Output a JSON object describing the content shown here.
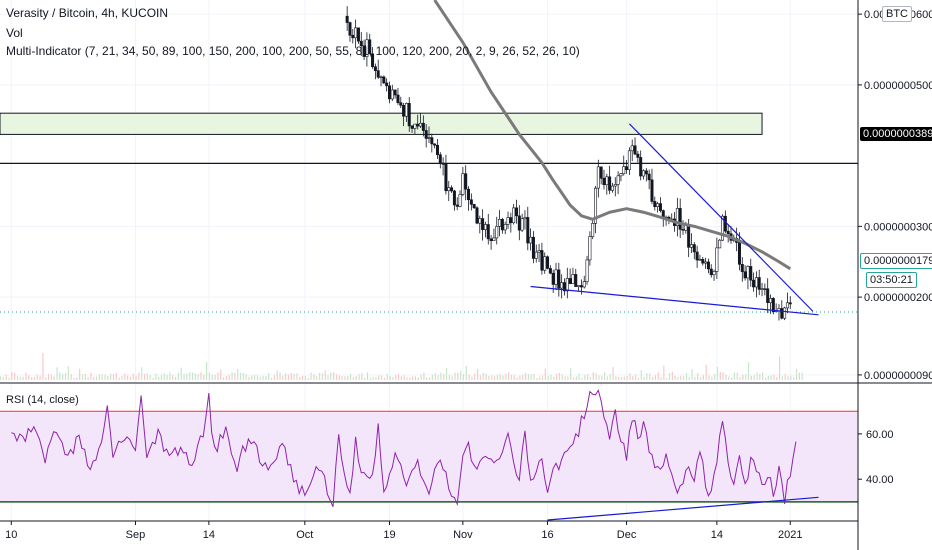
{
  "header": {
    "title": "Verasity / Bitcoin, 4h, KUCOIN",
    "volume_label": "Vol",
    "indicator_label": "Multi-Indicator (7, 21, 34, 50, 89, 100, 150, 200, 100, 200, 50, 55, 81, 100, 120, 200, 20, 2, 9, 26, 52, 26, 10)"
  },
  "currency_badge": "BTC",
  "price_tags": {
    "resistance": "0.0000000389",
    "last": "0.0000000179",
    "countdown": "03:50:21"
  },
  "colors": {
    "up": "#131722",
    "down": "#131722",
    "ma": "#7a7a7a",
    "trendline": "#1a1ad6",
    "zone_fill": "#e8f5e0",
    "rsi_line": "#8e24aa",
    "rsi_band": "#f3e5fa",
    "rsi_upper": "#e53935",
    "rsi_lower": "#1b5e20"
  },
  "chart_data": [
    {
      "type": "candlestick",
      "title": "Verasity / Bitcoin, 4h, KUCOIN",
      "y_ticks": [
        "0.0000000600",
        "0.0000000500",
        "0.0000000300",
        "0.0000000200",
        "0.0000000090"
      ],
      "y_tick_values": [
        60,
        50,
        30,
        20,
        9
      ],
      "y_unit_note": "values ×1e-9 BTC",
      "x_ticks": [
        "10",
        "Sep",
        "14",
        "Oct",
        "19",
        "Nov",
        "16",
        "Dec",
        "14",
        "2021"
      ],
      "x_tick_values": [
        0,
        22,
        35,
        52,
        67,
        80,
        95,
        109,
        125,
        138
      ],
      "x_range": [
        -2,
        150
      ],
      "y_range": [
        8,
        62
      ],
      "price_path": [
        [
          57,
          62
        ],
        [
          58,
          62
        ],
        [
          60,
          57
        ],
        [
          62,
          56
        ],
        [
          64,
          54
        ],
        [
          66,
          51
        ],
        [
          68,
          48
        ],
        [
          70,
          46
        ],
        [
          72,
          43.5
        ],
        [
          74,
          42
        ],
        [
          76,
          39
        ],
        [
          78,
          34
        ],
        [
          79,
          34
        ],
        [
          80,
          38
        ],
        [
          81,
          33
        ],
        [
          83,
          31
        ],
        [
          85,
          29
        ],
        [
          87,
          30
        ],
        [
          89,
          32
        ],
        [
          91,
          30
        ],
        [
          93,
          26
        ],
        [
          95,
          24
        ],
        [
          97,
          22
        ],
        [
          98,
          21.5
        ],
        [
          100,
          22
        ],
        [
          102,
          24
        ],
        [
          104,
          38
        ],
        [
          105,
          37
        ],
        [
          106,
          36
        ],
        [
          108,
          38
        ],
        [
          110,
          41
        ],
        [
          111,
          40
        ],
        [
          112,
          37
        ],
        [
          114,
          33
        ],
        [
          116,
          32
        ],
        [
          118,
          31
        ],
        [
          120,
          28
        ],
        [
          122,
          25
        ],
        [
          124,
          22
        ],
        [
          126,
          31
        ],
        [
          127,
          30
        ],
        [
          128,
          28
        ],
        [
          130,
          23
        ],
        [
          132,
          22
        ],
        [
          134,
          20
        ],
        [
          136,
          18
        ],
        [
          137,
          17
        ],
        [
          138,
          19
        ]
      ],
      "moving_average": [
        [
          75,
          62
        ],
        [
          80,
          56
        ],
        [
          85,
          49
        ],
        [
          90,
          43
        ],
        [
          94,
          39
        ],
        [
          96,
          36.5
        ],
        [
          99,
          33
        ],
        [
          101,
          31.5
        ],
        [
          103,
          31
        ],
        [
          106,
          32
        ],
        [
          109,
          32.5
        ],
        [
          112,
          32
        ],
        [
          115,
          31.3
        ],
        [
          118,
          30.5
        ],
        [
          121,
          30
        ],
        [
          124,
          29.3
        ],
        [
          127,
          28.6
        ],
        [
          130,
          27.6
        ],
        [
          133,
          26.4
        ],
        [
          136,
          25
        ],
        [
          138,
          24
        ]
      ],
      "resistance_zone": {
        "from": 43,
        "to": 46,
        "x_end": 133
      },
      "resistance_level": 38.9,
      "upper_trendline": [
        [
          109.5,
          44.5
        ],
        [
          142,
          18
        ]
      ],
      "lower_trendline": [
        [
          92,
          21.5
        ],
        [
          143,
          17.5
        ]
      ],
      "last_price": 17.9,
      "volume": {
        "note": "small volume bars along the bottom of the price pane"
      }
    },
    {
      "type": "line",
      "title": "RSI (14, close)",
      "y_ticks": [
        "60.00",
        "40.00"
      ],
      "y_tick_values": [
        60,
        40
      ],
      "y_range": [
        22,
        82
      ],
      "upper_band": 70,
      "lower_band": 30,
      "series": [
        {
          "name": "RSI (14, close)",
          "points": [
            [
              0,
              60
            ],
            [
              2,
              56
            ],
            [
              4,
              65
            ],
            [
              6,
              48
            ],
            [
              8,
              62
            ],
            [
              10,
              50
            ],
            [
              12,
              58
            ],
            [
              14,
              45
            ],
            [
              16,
              55
            ],
            [
              17,
              72
            ],
            [
              18,
              50
            ],
            [
              20,
              60
            ],
            [
              22,
              54
            ],
            [
              23,
              74
            ],
            [
              24,
              52
            ],
            [
              26,
              60
            ],
            [
              28,
              48
            ],
            [
              30,
              55
            ],
            [
              32,
              46
            ],
            [
              34,
              60
            ],
            [
              35,
              75
            ],
            [
              36,
              52
            ],
            [
              38,
              62
            ],
            [
              40,
              46
            ],
            [
              42,
              58
            ],
            [
              44,
              50
            ],
            [
              46,
              44
            ],
            [
              48,
              55
            ],
            [
              50,
              40
            ],
            [
              52,
              33
            ],
            [
              54,
              48
            ],
            [
              56,
              36
            ],
            [
              57,
              30
            ],
            [
              58,
              60
            ],
            [
              59,
              42
            ],
            [
              60,
              34
            ],
            [
              61,
              56
            ],
            [
              62,
              40
            ],
            [
              64,
              42
            ],
            [
              65,
              64
            ],
            [
              66,
              34
            ],
            [
              68,
              50
            ],
            [
              70,
              38
            ],
            [
              72,
              46
            ],
            [
              74,
              36
            ],
            [
              76,
              48
            ],
            [
              78,
              34
            ],
            [
              79,
              28
            ],
            [
              80,
              50
            ],
            [
              81,
              58
            ],
            [
              82,
              44
            ],
            [
              84,
              52
            ],
            [
              86,
              46
            ],
            [
              88,
              58
            ],
            [
              90,
              40
            ],
            [
              91,
              62
            ],
            [
              92,
              38
            ],
            [
              94,
              50
            ],
            [
              95,
              32
            ],
            [
              96,
              44
            ],
            [
              98,
              50
            ],
            [
              100,
              58
            ],
            [
              102,
              72
            ],
            [
              103,
              80
            ],
            [
              104,
              78
            ],
            [
              105,
              66
            ],
            [
              106,
              60
            ],
            [
              107,
              72
            ],
            [
              108,
              56
            ],
            [
              109,
              50
            ],
            [
              110,
              68
            ],
            [
              111,
              58
            ],
            [
              112,
              64
            ],
            [
              113,
              52
            ],
            [
              114,
              44
            ],
            [
              116,
              50
            ],
            [
              118,
              34
            ],
            [
              120,
              46
            ],
            [
              121,
              40
            ],
            [
              122,
              54
            ],
            [
              123,
              36
            ],
            [
              124,
              32
            ],
            [
              125,
              50
            ],
            [
              126,
              66
            ],
            [
              127,
              46
            ],
            [
              128,
              40
            ],
            [
              129,
              52
            ],
            [
              130,
              36
            ],
            [
              131,
              48
            ],
            [
              132,
              44
            ],
            [
              133,
              36
            ],
            [
              134,
              42
            ],
            [
              135,
              34
            ],
            [
              136,
              44
            ],
            [
              137,
              32
            ],
            [
              138,
              44
            ],
            [
              139,
              58
            ]
          ]
        }
      ],
      "trendline": [
        [
          95,
          22
        ],
        [
          143,
          32
        ]
      ]
    }
  ]
}
